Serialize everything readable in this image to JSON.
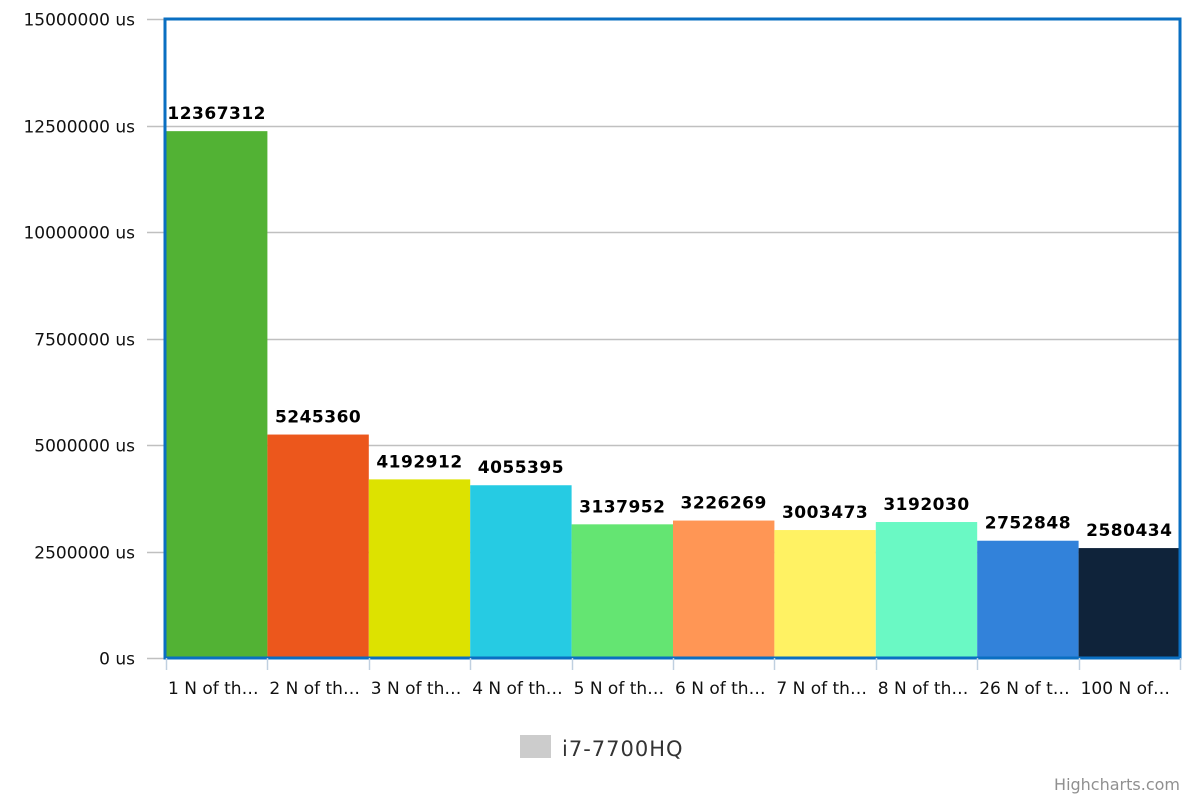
{
  "chart_data": {
    "type": "bar",
    "categories": [
      "1 N of th…",
      "2 N of th…",
      "3 N of th…",
      "4 N of th…",
      "5 N of th…",
      "6 N of th…",
      "7 N of th…",
      "8 N of th…",
      "26 N of t…",
      "100 N of…"
    ],
    "series": [
      {
        "name": "i7-7700HQ",
        "values": [
          12367312,
          5245360,
          4192912,
          4055395,
          3137952,
          3226269,
          3003473,
          3192030,
          2752848,
          2580434
        ],
        "data_labels": [
          "12367312",
          "5245360",
          "4192912",
          "4055395",
          "3137952",
          "3226269",
          "3003473",
          "3192030",
          "2752848",
          "2580434"
        ],
        "colors": [
          "#52b234",
          "#ec571c",
          "#dde200",
          "#26cbe3",
          "#64e572",
          "#ff9655",
          "#fff263",
          "#6af9c4",
          "#3282da",
          "#0f233a"
        ]
      }
    ],
    "ylim": [
      0,
      15000000
    ],
    "yticks": [
      0,
      2500000,
      5000000,
      7500000,
      10000000,
      12500000,
      15000000
    ],
    "ytick_labels": [
      "0 us",
      "2500000 us",
      "5000000 us",
      "7500000 us",
      "10000000 us",
      "12500000 us",
      "15000000 us"
    ],
    "grid": true,
    "legend": {
      "position": "bottom-center",
      "label": "i7-7700HQ",
      "swatch_color": "#cccccc"
    },
    "plot_border_color": "#0a6fc2",
    "gridline_color": "#c0c0c0",
    "axis_color": "#c0d0e0"
  },
  "credits": "Highcharts.com"
}
